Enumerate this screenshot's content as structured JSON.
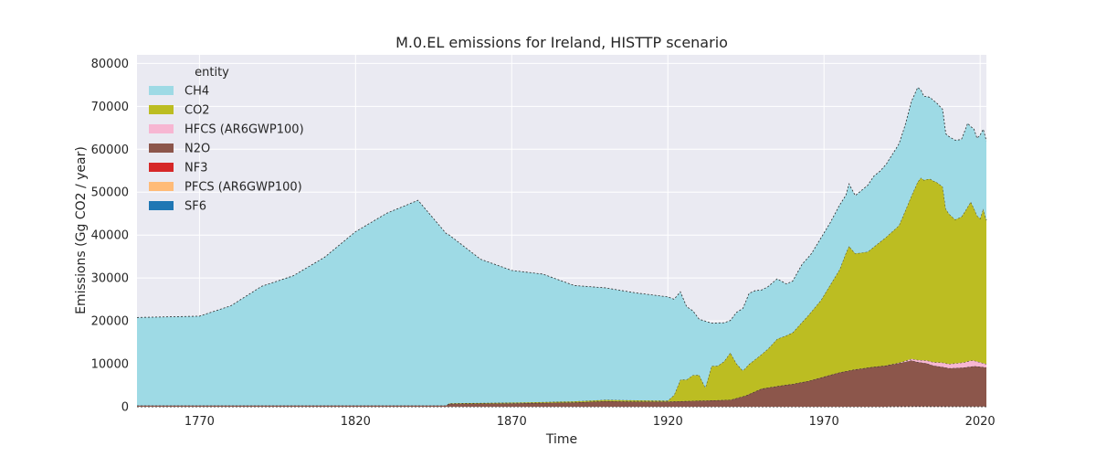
{
  "chart_data": {
    "type": "area",
    "stacked": true,
    "title": "M.0.EL emissions for Ireland, HISTTP scenario",
    "xlabel": "Time",
    "ylabel": "Emissions (Gg CO2 / year)",
    "xlim": [
      1750,
      2022
    ],
    "ylim": [
      0,
      82000
    ],
    "xticks": [
      1770,
      1820,
      1870,
      1920,
      1970,
      2020
    ],
    "yticks": [
      0,
      10000,
      20000,
      30000,
      40000,
      50000,
      60000,
      70000,
      80000
    ],
    "grid": true,
    "legend": {
      "title": "entity",
      "placement": "top-left"
    },
    "series": [
      {
        "name": "SF6",
        "color": "#1f77b4",
        "points": [
          [
            1750,
            0
          ],
          [
            1990,
            0
          ],
          [
            1991,
            20
          ],
          [
            2000,
            40
          ],
          [
            2010,
            30
          ],
          [
            2022,
            20
          ]
        ]
      },
      {
        "name": "PFCS (AR6GWP100)",
        "color": "#ffbb78",
        "points": [
          [
            1750,
            0
          ],
          [
            1990,
            0
          ],
          [
            1991,
            20
          ],
          [
            2000,
            40
          ],
          [
            2010,
            20
          ],
          [
            2022,
            20
          ]
        ]
      },
      {
        "name": "NF3",
        "color": "#d62728",
        "points": [
          [
            1750,
            0
          ],
          [
            1990,
            0
          ],
          [
            1991,
            10
          ],
          [
            2000,
            20
          ],
          [
            2022,
            10
          ]
        ]
      },
      {
        "name": "N2O",
        "color": "#8c564b",
        "points": [
          [
            1750,
            300
          ],
          [
            1800,
            300
          ],
          [
            1849,
            300
          ],
          [
            1850,
            700
          ],
          [
            1870,
            800
          ],
          [
            1880,
            900
          ],
          [
            1890,
            1000
          ],
          [
            1900,
            1300
          ],
          [
            1910,
            1200
          ],
          [
            1920,
            1200
          ],
          [
            1925,
            1300
          ],
          [
            1930,
            1400
          ],
          [
            1935,
            1500
          ],
          [
            1940,
            1600
          ],
          [
            1945,
            2600
          ],
          [
            1950,
            4200
          ],
          [
            1955,
            4800
          ],
          [
            1960,
            5300
          ],
          [
            1965,
            6000
          ],
          [
            1970,
            7000
          ],
          [
            1975,
            8000
          ],
          [
            1980,
            8700
          ],
          [
            1985,
            9200
          ],
          [
            1990,
            9600
          ],
          [
            1995,
            10200
          ],
          [
            1998,
            10700
          ],
          [
            2000,
            10300
          ],
          [
            2003,
            10000
          ],
          [
            2005,
            9500
          ],
          [
            2008,
            9200
          ],
          [
            2010,
            8900
          ],
          [
            2013,
            9000
          ],
          [
            2015,
            9100
          ],
          [
            2018,
            9400
          ],
          [
            2020,
            9300
          ],
          [
            2022,
            9100
          ]
        ]
      },
      {
        "name": "HFCS (AR6GWP100)",
        "color": "#f7b6d2",
        "points": [
          [
            1750,
            0
          ],
          [
            1990,
            0
          ],
          [
            1993,
            50
          ],
          [
            1995,
            150
          ],
          [
            2000,
            500
          ],
          [
            2005,
            800
          ],
          [
            2008,
            1000
          ],
          [
            2010,
            1000
          ],
          [
            2015,
            1200
          ],
          [
            2017,
            1400
          ],
          [
            2018,
            1300
          ],
          [
            2020,
            1000
          ],
          [
            2022,
            800
          ]
        ]
      },
      {
        "name": "CO2",
        "color": "#bcbd22",
        "points": [
          [
            1750,
            0
          ],
          [
            1849,
            0
          ],
          [
            1850,
            100
          ],
          [
            1880,
            200
          ],
          [
            1900,
            300
          ],
          [
            1910,
            300
          ],
          [
            1920,
            200
          ],
          [
            1922,
            1500
          ],
          [
            1924,
            5000
          ],
          [
            1926,
            5000
          ],
          [
            1928,
            6000
          ],
          [
            1930,
            6000
          ],
          [
            1932,
            3000
          ],
          [
            1934,
            8000
          ],
          [
            1936,
            8000
          ],
          [
            1938,
            9000
          ],
          [
            1940,
            11000
          ],
          [
            1942,
            8000
          ],
          [
            1944,
            6000
          ],
          [
            1946,
            7000
          ],
          [
            1948,
            7500
          ],
          [
            1950,
            8000
          ],
          [
            1952,
            9000
          ],
          [
            1955,
            11000
          ],
          [
            1958,
            11500
          ],
          [
            1960,
            12000
          ],
          [
            1963,
            14000
          ],
          [
            1966,
            16000
          ],
          [
            1969,
            18000
          ],
          [
            1972,
            21000
          ],
          [
            1975,
            24000
          ],
          [
            1977,
            27500
          ],
          [
            1978,
            29000
          ],
          [
            1980,
            27000
          ],
          [
            1982,
            27000
          ],
          [
            1984,
            27000
          ],
          [
            1986,
            28000
          ],
          [
            1988,
            29000
          ],
          [
            1990,
            30000
          ],
          [
            1992,
            31000
          ],
          [
            1994,
            32000
          ],
          [
            1996,
            35000
          ],
          [
            1998,
            38000
          ],
          [
            2000,
            41500
          ],
          [
            2001,
            42500
          ],
          [
            2002,
            42000
          ],
          [
            2004,
            42500
          ],
          [
            2006,
            42000
          ],
          [
            2008,
            41000
          ],
          [
            2009,
            36000
          ],
          [
            2010,
            35000
          ],
          [
            2012,
            33500
          ],
          [
            2014,
            34000
          ],
          [
            2016,
            36000
          ],
          [
            2017,
            37000
          ],
          [
            2018,
            35500
          ],
          [
            2019,
            34000
          ],
          [
            2020,
            33500
          ],
          [
            2021,
            36000
          ],
          [
            2022,
            33500
          ]
        ]
      },
      {
        "name": "CH4",
        "color": "#9edae5",
        "points": [
          [
            1750,
            20500
          ],
          [
            1770,
            20800
          ],
          [
            1780,
            23200
          ],
          [
            1790,
            27800
          ],
          [
            1800,
            30200
          ],
          [
            1810,
            34500
          ],
          [
            1820,
            40500
          ],
          [
            1830,
            44800
          ],
          [
            1840,
            47800
          ],
          [
            1850,
            39200
          ],
          [
            1860,
            33500
          ],
          [
            1870,
            30800
          ],
          [
            1880,
            29800
          ],
          [
            1890,
            27000
          ],
          [
            1900,
            26100
          ],
          [
            1910,
            25000
          ],
          [
            1920,
            24200
          ],
          [
            1922,
            22300
          ],
          [
            1924,
            20500
          ],
          [
            1926,
            17000
          ],
          [
            1928,
            15000
          ],
          [
            1930,
            13000
          ],
          [
            1932,
            15500
          ],
          [
            1934,
            10000
          ],
          [
            1936,
            10000
          ],
          [
            1938,
            9000
          ],
          [
            1940,
            7500
          ],
          [
            1942,
            12000
          ],
          [
            1944,
            14500
          ],
          [
            1946,
            16500
          ],
          [
            1948,
            16000
          ],
          [
            1950,
            15000
          ],
          [
            1952,
            14500
          ],
          [
            1955,
            14000
          ],
          [
            1958,
            12000
          ],
          [
            1960,
            12000
          ],
          [
            1963,
            13500
          ],
          [
            1966,
            13500
          ],
          [
            1969,
            14500
          ],
          [
            1972,
            14500
          ],
          [
            1975,
            15000
          ],
          [
            1977,
            13500
          ],
          [
            1978,
            14500
          ],
          [
            1980,
            13500
          ],
          [
            1982,
            14500
          ],
          [
            1984,
            15500
          ],
          [
            1986,
            16500
          ],
          [
            1988,
            16500
          ],
          [
            1990,
            17000
          ],
          [
            1992,
            18000
          ],
          [
            1994,
            19000
          ],
          [
            1996,
            20000
          ],
          [
            1998,
            22000
          ],
          [
            2000,
            22000
          ],
          [
            2001,
            20500
          ],
          [
            2002,
            19500
          ],
          [
            2004,
            19000
          ],
          [
            2006,
            18500
          ],
          [
            2008,
            18000
          ],
          [
            2009,
            17500
          ],
          [
            2010,
            18000
          ],
          [
            2012,
            18500
          ],
          [
            2014,
            18000
          ],
          [
            2016,
            19500
          ],
          [
            2017,
            17500
          ],
          [
            2018,
            18500
          ],
          [
            2019,
            18000
          ],
          [
            2020,
            19500
          ],
          [
            2021,
            18500
          ],
          [
            2022,
            18500
          ]
        ]
      }
    ]
  }
}
